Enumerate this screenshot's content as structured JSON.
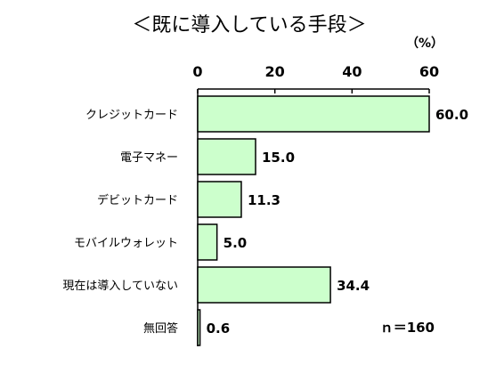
{
  "chart_data": {
    "type": "bar",
    "orientation": "horizontal",
    "title": "＜既に導入している手段＞",
    "unit_label": "（%）",
    "categories": [
      "クレジットカード",
      "電子マネー",
      "デビットカード",
      "モバイルウォレット",
      "現在は導入していない",
      "無回答"
    ],
    "values": [
      60.0,
      15.0,
      11.3,
      5.0,
      34.4,
      0.6
    ],
    "value_labels": [
      "60.0",
      "15.0",
      "11.3",
      "5.0",
      "34.4",
      "0.6"
    ],
    "x_ticks": [
      "0",
      "20",
      "40",
      "60"
    ],
    "xlim": [
      0,
      60
    ],
    "grid": false,
    "legend": "none",
    "sample_note": "ｎ＝160",
    "colors": {
      "bar_fill": "#ccffcc",
      "bar_stroke": "#000000"
    }
  }
}
